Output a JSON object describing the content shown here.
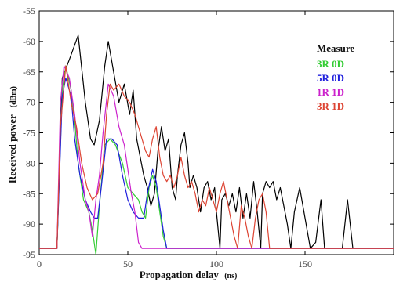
{
  "chart_data": {
    "type": "line",
    "xlabel": "Propagation delay",
    "xlabel_unit": "(ns)",
    "ylabel": "Received power",
    "ylabel_unit": "(dBm)",
    "xlim": [
      0,
      200
    ],
    "ylim": [
      -95,
      -55
    ],
    "xticks": [
      "0",
      "50",
      "100",
      "150"
    ],
    "xtick_values": [
      0,
      50,
      100,
      150
    ],
    "yticks": [
      "-95",
      "-90",
      "-85",
      "-80",
      "-75",
      "-70",
      "-65",
      "-60",
      "-55"
    ],
    "ytick_values": [
      -95,
      -90,
      -85,
      -80,
      -75,
      -70,
      -65,
      -60,
      -55
    ],
    "grid": false,
    "legend_position": "upper-right",
    "legend_title": "Measure",
    "series": [
      {
        "name": "",
        "color": "#000000",
        "points": [
          [
            -5,
            -94
          ],
          [
            10,
            -94
          ],
          [
            13,
            -66
          ],
          [
            17,
            -63
          ],
          [
            22,
            -59
          ],
          [
            26,
            -70
          ],
          [
            29,
            -76
          ],
          [
            31,
            -77
          ],
          [
            34,
            -73
          ],
          [
            37,
            -64
          ],
          [
            39,
            -60
          ],
          [
            42,
            -65
          ],
          [
            45,
            -70
          ],
          [
            48,
            -67
          ],
          [
            51,
            -72
          ],
          [
            53,
            -68
          ],
          [
            55,
            -76
          ],
          [
            57,
            -79
          ],
          [
            59,
            -82
          ],
          [
            61,
            -84
          ],
          [
            63,
            -87
          ],
          [
            65,
            -85
          ],
          [
            67,
            -78
          ],
          [
            69,
            -74
          ],
          [
            71,
            -78
          ],
          [
            73,
            -76
          ],
          [
            75,
            -84
          ],
          [
            77,
            -86
          ],
          [
            78,
            -82
          ],
          [
            80,
            -77
          ],
          [
            82,
            -75
          ],
          [
            84,
            -80
          ],
          [
            85,
            -84
          ],
          [
            87,
            -82
          ],
          [
            89,
            -84
          ],
          [
            91,
            -88
          ],
          [
            93,
            -84
          ],
          [
            95,
            -83
          ],
          [
            97,
            -86
          ],
          [
            99,
            -84
          ],
          [
            100,
            -88
          ],
          [
            102,
            -94
          ],
          [
            103,
            -86
          ],
          [
            105,
            -85
          ],
          [
            107,
            -87
          ],
          [
            109,
            -85
          ],
          [
            111,
            -88
          ],
          [
            113,
            -84
          ],
          [
            115,
            -89
          ],
          [
            117,
            -85
          ],
          [
            119,
            -89
          ],
          [
            121,
            -83
          ],
          [
            123,
            -88
          ],
          [
            125,
            -94
          ],
          [
            126,
            -85
          ],
          [
            128,
            -83
          ],
          [
            130,
            -84
          ],
          [
            132,
            -83
          ],
          [
            134,
            -86
          ],
          [
            136,
            -84
          ],
          [
            138,
            -87
          ],
          [
            140,
            -90
          ],
          [
            142,
            -94
          ],
          [
            144,
            -88
          ],
          [
            147,
            -84
          ],
          [
            150,
            -89
          ],
          [
            153,
            -94
          ],
          [
            156,
            -93
          ],
          [
            159,
            -86
          ],
          [
            161,
            -94
          ],
          [
            171,
            -94
          ],
          [
            174,
            -86
          ],
          [
            177,
            -94
          ],
          [
            200,
            -94
          ]
        ]
      },
      {
        "name": "3R 0D",
        "color": "#33cc33",
        "points": [
          [
            -5,
            -94
          ],
          [
            10,
            -94
          ],
          [
            13,
            -68
          ],
          [
            15,
            -64
          ],
          [
            18,
            -68
          ],
          [
            20,
            -73
          ],
          [
            22,
            -80
          ],
          [
            25,
            -86
          ],
          [
            28,
            -88
          ],
          [
            30,
            -91
          ],
          [
            32,
            -95
          ],
          [
            34,
            -87
          ],
          [
            37,
            -77
          ],
          [
            40,
            -76
          ],
          [
            43,
            -77
          ],
          [
            47,
            -80
          ],
          [
            50,
            -84
          ],
          [
            53,
            -85
          ],
          [
            56,
            -86
          ],
          [
            58,
            -88
          ],
          [
            60,
            -89
          ],
          [
            62,
            -84
          ],
          [
            64,
            -82
          ],
          [
            66,
            -84
          ],
          [
            68,
            -88
          ],
          [
            70,
            -92
          ],
          [
            72,
            -94
          ],
          [
            200,
            -94
          ]
        ]
      },
      {
        "name": "5R 0D",
        "color": "#1f1fdd",
        "points": [
          [
            -5,
            -94
          ],
          [
            10,
            -94
          ],
          [
            13,
            -69
          ],
          [
            15,
            -66
          ],
          [
            18,
            -69
          ],
          [
            20,
            -76
          ],
          [
            23,
            -82
          ],
          [
            26,
            -86
          ],
          [
            29,
            -88
          ],
          [
            31,
            -89
          ],
          [
            33,
            -89
          ],
          [
            35,
            -84
          ],
          [
            38,
            -76
          ],
          [
            41,
            -76
          ],
          [
            44,
            -77
          ],
          [
            47,
            -82
          ],
          [
            50,
            -86
          ],
          [
            53,
            -88
          ],
          [
            56,
            -89
          ],
          [
            59,
            -89
          ],
          [
            61,
            -85
          ],
          [
            64,
            -81
          ],
          [
            66,
            -83
          ],
          [
            68,
            -87
          ],
          [
            70,
            -91
          ],
          [
            72,
            -94
          ],
          [
            200,
            -94
          ]
        ]
      },
      {
        "name": "1R 1D",
        "color": "#cc22cc",
        "points": [
          [
            -5,
            -94
          ],
          [
            10,
            -94
          ],
          [
            12,
            -70
          ],
          [
            14,
            -64
          ],
          [
            17,
            -66
          ],
          [
            20,
            -72
          ],
          [
            23,
            -80
          ],
          [
            26,
            -86
          ],
          [
            28,
            -88
          ],
          [
            30,
            -92
          ],
          [
            32,
            -86
          ],
          [
            34,
            -82
          ],
          [
            36,
            -75
          ],
          [
            39,
            -67
          ],
          [
            42,
            -69
          ],
          [
            45,
            -74
          ],
          [
            48,
            -77
          ],
          [
            50,
            -81
          ],
          [
            52,
            -85
          ],
          [
            54,
            -88
          ],
          [
            56,
            -93
          ],
          [
            58,
            -94
          ],
          [
            200,
            -94
          ]
        ]
      },
      {
        "name": "3R 1D",
        "color": "#dd4433",
        "points": [
          [
            -5,
            -94
          ],
          [
            10,
            -94
          ],
          [
            12,
            -74
          ],
          [
            15,
            -64
          ],
          [
            18,
            -70
          ],
          [
            21,
            -74
          ],
          [
            24,
            -80
          ],
          [
            27,
            -84
          ],
          [
            30,
            -86
          ],
          [
            33,
            -85
          ],
          [
            36,
            -80
          ],
          [
            38,
            -72
          ],
          [
            40,
            -67
          ],
          [
            42,
            -68
          ],
          [
            45,
            -67
          ],
          [
            48,
            -69
          ],
          [
            51,
            -70
          ],
          [
            54,
            -72
          ],
          [
            57,
            -75
          ],
          [
            60,
            -78
          ],
          [
            62,
            -79
          ],
          [
            64,
            -76
          ],
          [
            66,
            -74
          ],
          [
            68,
            -79
          ],
          [
            70,
            -82
          ],
          [
            72,
            -83
          ],
          [
            74,
            -82
          ],
          [
            76,
            -84
          ],
          [
            78,
            -82
          ],
          [
            80,
            -79
          ],
          [
            82,
            -82
          ],
          [
            84,
            -84
          ],
          [
            86,
            -83
          ],
          [
            88,
            -85
          ],
          [
            90,
            -88
          ],
          [
            92,
            -86
          ],
          [
            94,
            -87
          ],
          [
            96,
            -84
          ],
          [
            98,
            -86
          ],
          [
            100,
            -88
          ],
          [
            102,
            -85
          ],
          [
            104,
            -83
          ],
          [
            106,
            -86
          ],
          [
            108,
            -89
          ],
          [
            110,
            -92
          ],
          [
            112,
            -94
          ],
          [
            114,
            -87
          ],
          [
            116,
            -89
          ],
          [
            118,
            -92
          ],
          [
            120,
            -94
          ],
          [
            122,
            -89
          ],
          [
            124,
            -86
          ],
          [
            126,
            -85
          ],
          [
            128,
            -88
          ],
          [
            130,
            -94
          ],
          [
            200,
            -94
          ]
        ]
      }
    ]
  }
}
